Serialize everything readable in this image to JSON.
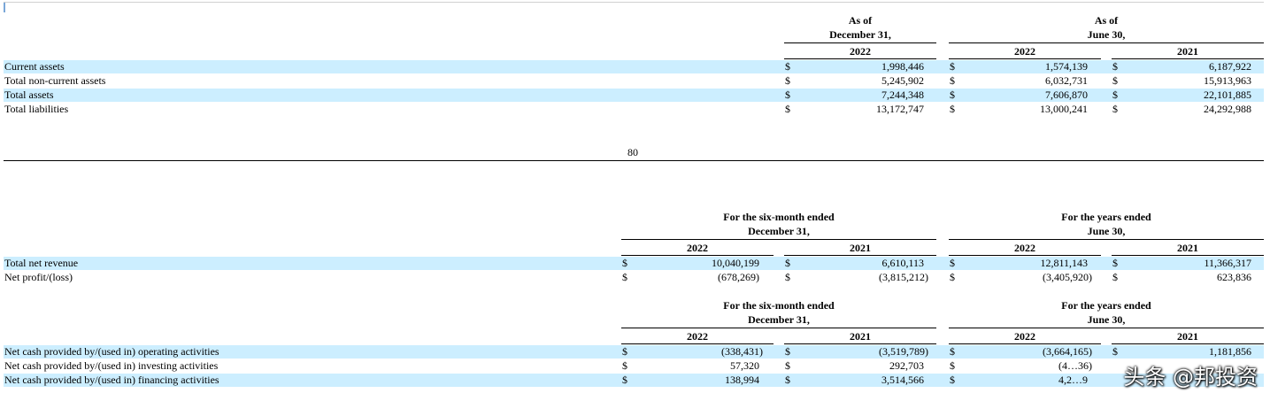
{
  "balance": {
    "head_dec_line1": "As of",
    "head_dec_line2": "December 31,",
    "head_jun_line1": "As of",
    "head_jun_line2": "June 30,",
    "years": [
      "2022",
      "2022",
      "2021"
    ],
    "rows": [
      {
        "label": "Current assets",
        "v": [
          "1,998,446",
          "1,574,139",
          "6,187,922"
        ]
      },
      {
        "label": "Total non-current assets",
        "v": [
          "5,245,902",
          "6,032,731",
          "15,913,963"
        ]
      },
      {
        "label": "Total assets",
        "v": [
          "7,244,348",
          "7,606,870",
          "22,101,885"
        ]
      },
      {
        "label": "Total liabilities",
        "v": [
          "13,172,747",
          "13,000,241",
          "24,292,988"
        ]
      }
    ]
  },
  "page_number": "80",
  "currency": "$",
  "income": {
    "head_six_line1": "For the six-month ended",
    "head_six_line2": "December 31,",
    "head_years_line1": "For the years ended",
    "head_years_line2": "June 30,",
    "years": [
      "2022",
      "2021",
      "2022",
      "2021"
    ],
    "rows": [
      {
        "label": "Total net revenue",
        "v": [
          "10,040,199",
          "6,610,113",
          "12,811,143",
          "11,366,317"
        ]
      },
      {
        "label": "Net profit/(loss)",
        "v": [
          "(678,269)",
          "(3,815,212)",
          "(3,405,920)",
          "623,836"
        ]
      }
    ]
  },
  "cashflow": {
    "head_six_line1": "For the six-month ended",
    "head_six_line2": "December 31,",
    "head_years_line1": "For the years ended",
    "head_years_line2": "June 30,",
    "years": [
      "2022",
      "2021",
      "2022",
      "2021"
    ],
    "rows": [
      {
        "label": "Net cash provided by/(used in) operating activities",
        "v": [
          "(338,431)",
          "(3,519,789)",
          "(3,664,165)",
          "1,181,856"
        ]
      },
      {
        "label": "Net cash provided by/(used in) investing activities",
        "v": [
          "57,320",
          "292,703",
          "(4…36)",
          ""
        ]
      },
      {
        "label": "Net cash provided by/(used in) financing activities",
        "v": [
          "138,994",
          "3,514,566",
          "4,2…9",
          ""
        ]
      }
    ]
  },
  "watermark": "头条 @邦投资"
}
